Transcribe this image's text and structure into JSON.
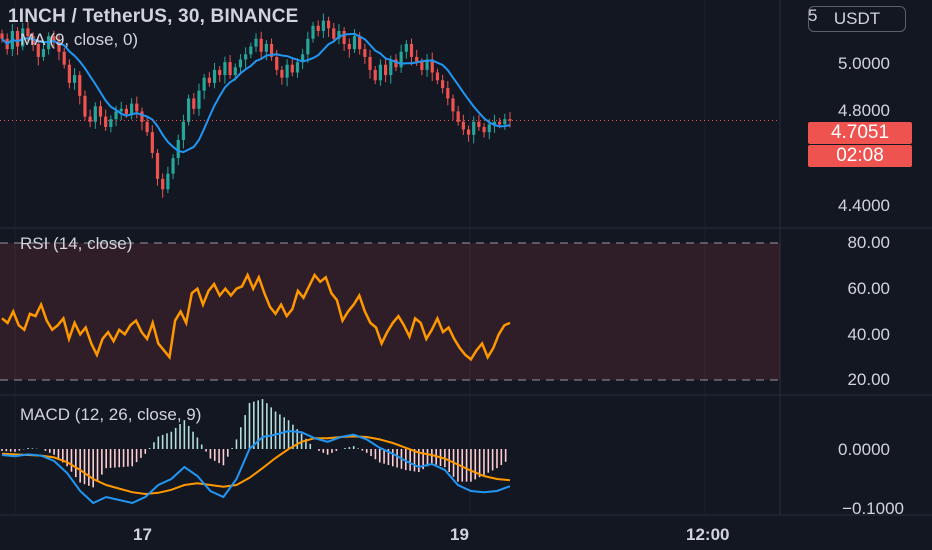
{
  "header": {
    "title": "1INCH / TetherUS, 30, BINANCE",
    "currency_button": "USDT"
  },
  "colors": {
    "up": "#26a69a",
    "down": "#ef5350",
    "ma": "#2196f3",
    "rsi": "#ff9800",
    "macd_line": "#2196f3",
    "signal_line": "#ff9800",
    "background": "#131722"
  },
  "price_pane": {
    "study_label": "MA (9, close, 0)",
    "axis_ticks": [
      "5.0000",
      "4.8000",
      "4.4000"
    ],
    "partial_tick": "5",
    "last_price": "4.7051",
    "countdown": "02:08"
  },
  "rsi_pane": {
    "study_label": "RSI (14, close)",
    "axis_ticks": [
      "80.00",
      "60.00",
      "40.00",
      "20.00"
    ]
  },
  "macd_pane": {
    "study_label": "MACD (12, 26, close, 9)",
    "axis_ticks": [
      "0.0000",
      "−0.1000"
    ]
  },
  "time_axis": {
    "labels": [
      "17",
      "19",
      "12:00"
    ]
  },
  "chart_data": [
    {
      "type": "candlestick",
      "title": "1INCH / TetherUS, 30, BINANCE",
      "overlay": "MA (9, close, 0)",
      "y_range": [
        4.36,
        5.1
      ],
      "y_ticks": [
        5.0,
        4.8,
        4.4
      ],
      "last_price": 4.7051,
      "close": [
        5.02,
        4.98,
        5.05,
        4.99,
        5.06,
        5.03,
        5.0,
        4.95,
        4.98,
        5.03,
        5.01,
        4.97,
        4.92,
        4.85,
        4.88,
        4.8,
        4.72,
        4.7,
        4.76,
        4.72,
        4.68,
        4.71,
        4.74,
        4.75,
        4.73,
        4.77,
        4.74,
        4.7,
        4.66,
        4.58,
        4.48,
        4.44,
        4.5,
        4.56,
        4.63,
        4.7,
        4.79,
        4.75,
        4.82,
        4.87,
        4.85,
        4.9,
        4.88,
        4.93,
        4.88,
        4.91,
        4.94,
        4.96,
        4.99,
        5.02,
        4.97,
        5.0,
        4.95,
        4.9,
        4.87,
        4.92,
        4.89,
        4.93,
        4.96,
        5.02,
        5.07,
        5.05,
        5.09,
        5.06,
        5.02,
        5.05,
        5.0,
        4.98,
        5.03,
        4.98,
        4.95,
        4.9,
        4.86,
        4.92,
        4.88,
        4.94,
        4.91,
        4.97,
        5.0,
        4.95,
        4.93,
        4.9,
        4.94,
        4.89,
        4.86,
        4.83,
        4.79,
        4.74,
        4.7,
        4.67,
        4.65,
        4.7,
        4.68,
        4.66,
        4.69,
        4.7,
        4.69,
        4.71,
        4.7051
      ]
    },
    {
      "type": "line",
      "title": "RSI (14, close)",
      "y_range": [
        15,
        85
      ],
      "band": [
        20,
        80
      ],
      "y_ticks": [
        80,
        60,
        40,
        20
      ],
      "values": [
        47,
        45,
        50,
        44,
        42,
        49,
        48,
        53,
        46,
        42,
        44,
        47,
        38,
        45,
        40,
        43,
        36,
        31,
        38,
        41,
        37,
        42,
        40,
        44,
        46,
        41,
        38,
        45,
        36,
        33,
        30,
        46,
        50,
        45,
        58,
        60,
        53,
        59,
        62,
        57,
        60,
        57,
        60,
        61,
        66,
        60,
        65,
        58,
        52,
        49,
        53,
        48,
        51,
        59,
        56,
        61,
        66,
        63,
        65,
        58,
        55,
        46,
        50,
        53,
        57,
        50,
        45,
        43,
        36,
        41,
        45,
        48,
        44,
        39,
        47,
        45,
        38,
        42,
        47,
        41,
        43,
        38,
        34,
        31,
        29,
        33,
        36,
        30,
        34,
        40,
        44,
        45
      ]
    },
    {
      "type": "macd",
      "title": "MACD (12, 26, close, 9)",
      "y_range": [
        -0.12,
        0.04
      ],
      "y_ticks": [
        0.0,
        -0.1
      ],
      "macd": [
        -0.01,
        -0.012,
        -0.009,
        -0.011,
        -0.02,
        -0.04,
        -0.07,
        -0.09,
        -0.08,
        -0.085,
        -0.09,
        -0.08,
        -0.06,
        -0.05,
        -0.03,
        -0.045,
        -0.07,
        -0.08,
        -0.05,
        0.0,
        0.02,
        0.024,
        0.03,
        0.028,
        0.018,
        0.012,
        0.02,
        0.024,
        0.016,
        0.002,
        -0.008,
        -0.02,
        -0.03,
        -0.025,
        -0.035,
        -0.06,
        -0.07,
        -0.072,
        -0.07,
        -0.062
      ],
      "signal": [
        -0.008,
        -0.009,
        -0.01,
        -0.011,
        -0.014,
        -0.022,
        -0.035,
        -0.05,
        -0.06,
        -0.066,
        -0.072,
        -0.075,
        -0.073,
        -0.068,
        -0.06,
        -0.057,
        -0.06,
        -0.063,
        -0.06,
        -0.048,
        -0.032,
        -0.015,
        0.0,
        0.012,
        0.018,
        0.018,
        0.02,
        0.021,
        0.02,
        0.016,
        0.01,
        0.002,
        -0.006,
        -0.01,
        -0.016,
        -0.026,
        -0.036,
        -0.045,
        -0.05,
        -0.052
      ]
    }
  ]
}
